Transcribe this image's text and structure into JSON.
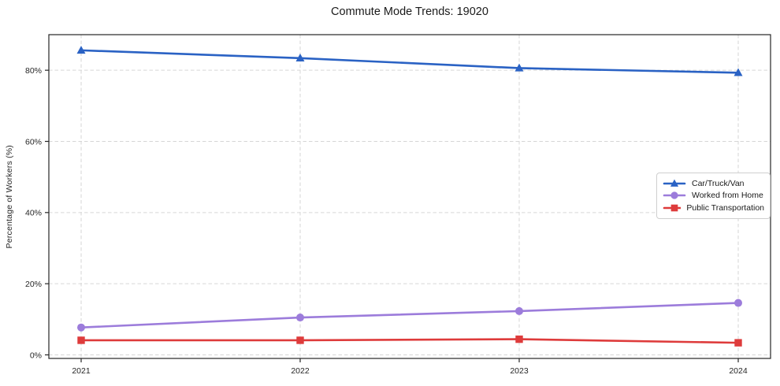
{
  "chart_data": {
    "type": "line",
    "title": "Commute Mode Trends: 19020",
    "xlabel": "",
    "ylabel": "Percentage of Workers (%)",
    "categories": [
      "2021",
      "2022",
      "2023",
      "2024"
    ],
    "series": [
      {
        "name": "Car/Truck/Van",
        "marker": "triangle",
        "color": "#2a62c4",
        "values": [
          85.6,
          83.4,
          80.6,
          79.3
        ]
      },
      {
        "name": "Worked from Home",
        "marker": "circle",
        "color": "#9c7cdb",
        "values": [
          7.7,
          10.5,
          12.3,
          14.6
        ]
      },
      {
        "name": "Public Transportation",
        "marker": "square",
        "color": "#de3b3b",
        "values": [
          4.1,
          4.1,
          4.4,
          3.4
        ]
      }
    ],
    "yticks": [
      0,
      20,
      40,
      60,
      80
    ],
    "ytick_labels": [
      "0%",
      "20%",
      "40%",
      "60%",
      "80%"
    ],
    "ylim": [
      -1,
      90
    ],
    "grid": true,
    "grid_style": "dashed",
    "grid_color": "#d6d6d6",
    "spine_color": "#262626",
    "legend_position": "center-right"
  }
}
